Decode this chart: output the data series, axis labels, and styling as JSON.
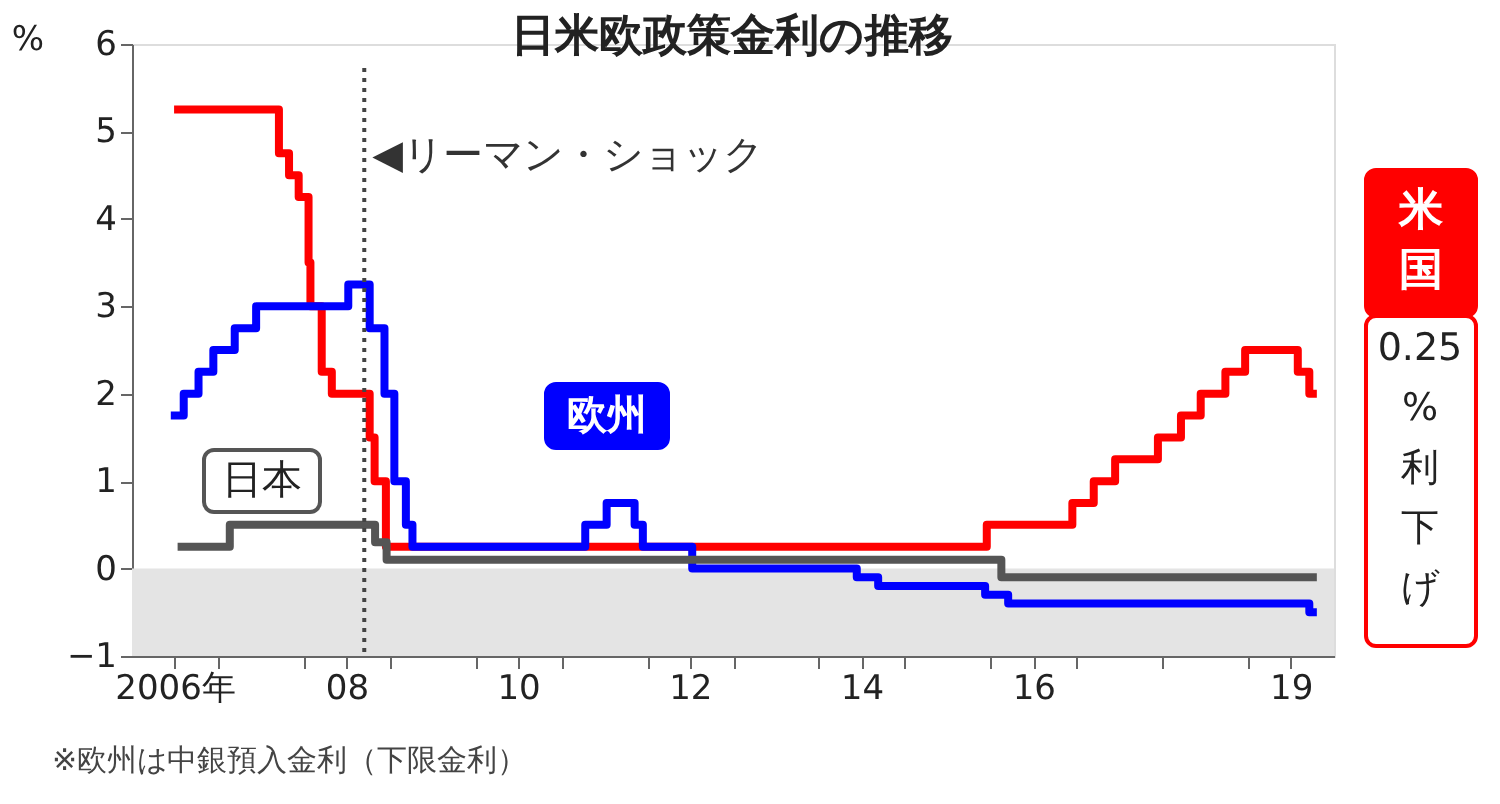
{
  "chart_data": {
    "type": "step",
    "title": "日米欧政策金利の推移",
    "ylabel": "%",
    "xlim": [
      "2006-01-01",
      "2020-01-01"
    ],
    "xticks": [
      {
        "value": "2006-07-01",
        "label": "2006年"
      },
      {
        "value": "2007-01-01",
        "label": null
      },
      {
        "value": "2008-01-01",
        "label": null
      },
      {
        "value": "2008-07-01",
        "label": "08"
      },
      {
        "value": "2009-01-01",
        "label": null
      },
      {
        "value": "2010-01-01",
        "label": null
      },
      {
        "value": "2010-07-01",
        "label": "10"
      },
      {
        "value": "2011-01-01",
        "label": null
      },
      {
        "value": "2012-01-01",
        "label": null
      },
      {
        "value": "2012-07-01",
        "label": "12"
      },
      {
        "value": "2013-01-01",
        "label": null
      },
      {
        "value": "2014-01-01",
        "label": null
      },
      {
        "value": "2014-07-01",
        "label": "14"
      },
      {
        "value": "2015-01-01",
        "label": null
      },
      {
        "value": "2016-01-01",
        "label": null
      },
      {
        "value": "2016-07-01",
        "label": "16"
      },
      {
        "value": "2017-01-01",
        "label": null
      },
      {
        "value": "2018-01-01",
        "label": null
      },
      {
        "value": "2019-01-01",
        "label": null
      },
      {
        "value": "2019-07-01",
        "label": "19"
      }
    ],
    "ylim": [
      -1,
      6
    ],
    "yticks": [
      -1,
      0,
      1,
      2,
      3,
      4,
      5,
      6
    ],
    "grid": false,
    "legend": false,
    "marker": "none",
    "line_style": "solid",
    "series": [
      {
        "name": "米国",
        "color": "#ff0000",
        "x": [
          "2006-06-29",
          "2007-09-18",
          "2007-10-31",
          "2007-12-11",
          "2008-01-22",
          "2008-01-30",
          "2008-03-18",
          "2008-04-30",
          "2008-10-08",
          "2008-10-29",
          "2008-12-16",
          "2015-12-16",
          "2016-12-14",
          "2017-03-15",
          "2017-06-14",
          "2017-12-13",
          "2018-03-21",
          "2018-06-13",
          "2018-09-26",
          "2018-12-19",
          "2019-07-31",
          "2019-09-18",
          "2019-10-20"
        ],
        "values": [
          5.25,
          4.75,
          4.5,
          4.25,
          3.5,
          3.0,
          2.25,
          2.0,
          1.5,
          1.0,
          0.25,
          0.5,
          0.75,
          1.0,
          1.25,
          1.5,
          1.75,
          2.0,
          2.25,
          2.5,
          2.25,
          2.0,
          2.0
        ]
      },
      {
        "name": "欧州",
        "color": "#0000ff",
        "x": [
          "2006-06-15",
          "2006-08-09",
          "2006-10-11",
          "2006-12-13",
          "2007-03-14",
          "2007-06-13",
          "2008-07-09",
          "2008-10-08",
          "2008-12-10",
          "2009-01-21",
          "2009-03-11",
          "2009-04-08",
          "2011-04-13",
          "2011-07-13",
          "2011-11-09",
          "2011-12-14",
          "2012-07-11",
          "2014-06-11",
          "2014-09-10",
          "2015-12-09",
          "2016-03-16",
          "2019-09-18",
          "2019-10-20"
        ],
        "values": [
          1.75,
          2.0,
          2.25,
          2.5,
          2.75,
          3.0,
          3.25,
          2.75,
          2.0,
          1.0,
          0.5,
          0.25,
          0.5,
          0.75,
          0.5,
          0.25,
          0.0,
          -0.1,
          -0.2,
          -0.3,
          -0.4,
          -0.5,
          -0.5
        ]
      },
      {
        "name": "日本",
        "color": "#555555",
        "x": [
          "2006-07-14",
          "2007-02-21",
          "2008-10-31",
          "2008-12-19",
          "2016-02-16",
          "2019-10-20"
        ],
        "values": [
          0.25,
          0.5,
          0.3,
          0.1,
          -0.1,
          -0.1
        ]
      }
    ],
    "bands": [
      {
        "axis": "y",
        "from": -1,
        "to": 0,
        "color": "#e4e4e4"
      }
    ],
    "ref_lines": [
      {
        "axis": "x",
        "value": "2008-09-15",
        "label": "◀リーマン・ショック",
        "color": "#444444",
        "line_style": "dotted"
      }
    ],
    "annotations": [
      "0.25%利下げ",
      "※欧州は中銀預入金利（下限金利）"
    ]
  }
}
